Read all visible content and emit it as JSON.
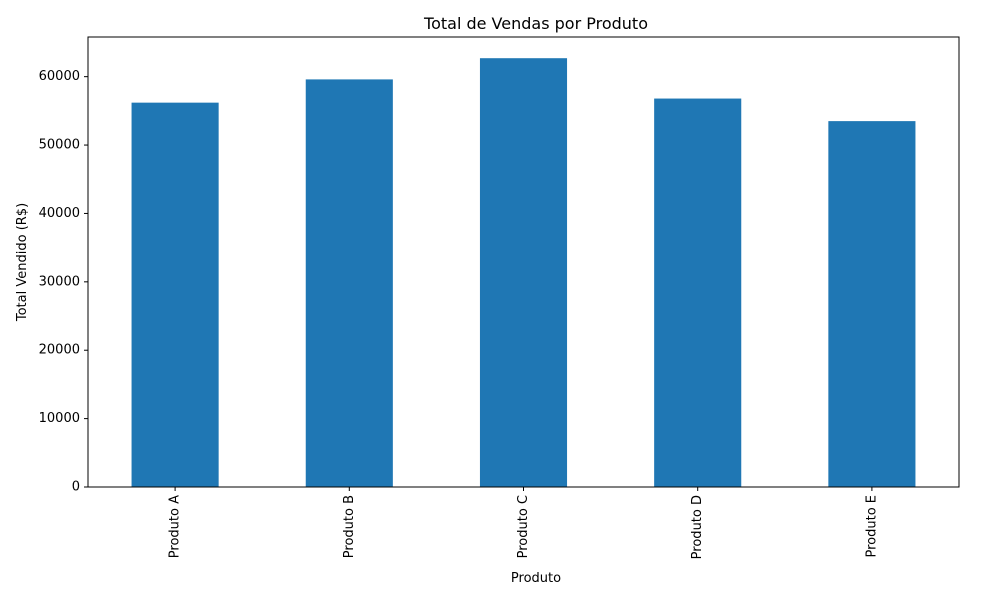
{
  "chart_data": {
    "type": "bar",
    "title": "Total de Vendas por Produto",
    "xlabel": "Produto",
    "ylabel": "Total Vendido (R$)",
    "categories": [
      "Produto A",
      "Produto B",
      "Produto C",
      "Produto D",
      "Produto E"
    ],
    "values": [
      56200,
      59600,
      62700,
      56800,
      53500
    ],
    "ylim": [
      0,
      65800
    ],
    "yticks": [
      0,
      10000,
      20000,
      30000,
      40000,
      50000,
      60000
    ],
    "ytick_labels": [
      "0",
      "10000",
      "20000",
      "30000",
      "40000",
      "50000",
      "60000"
    ],
    "grid": false,
    "legend": "none",
    "bar_color": "#1f77b4",
    "x_tick_rotation": "vertical"
  }
}
